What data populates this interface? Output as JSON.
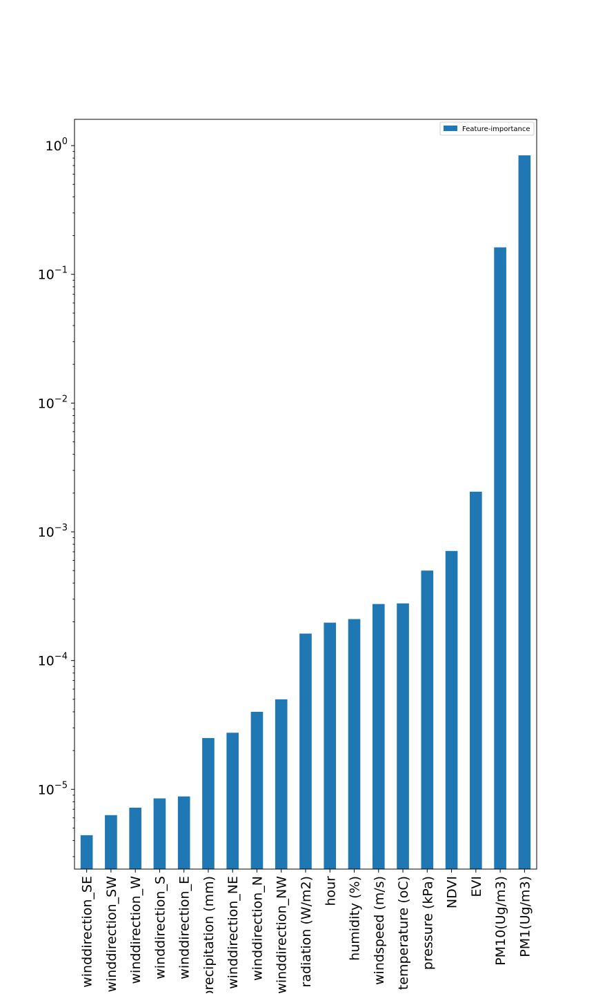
{
  "chart_data": {
    "type": "bar",
    "title": "",
    "xlabel": "",
    "ylabel": "",
    "yscale": "log",
    "ylim": [
      2.4e-06,
      1.6
    ],
    "grid": false,
    "legend_position": "top-right",
    "bar_color": "#1f77b4",
    "categories": [
      "winddirection_SE",
      "winddirection_SW",
      "winddirection_W",
      "winddirection_S",
      "winddirection_E",
      "precipitation (mm)",
      "winddirection_NE",
      "winddirection_N",
      "winddirection_NW",
      "radiation (W/m2)",
      "hour",
      "humidity (%)",
      "windspeed (m/s)",
      "temperature (oC)",
      "pressure (kPa)",
      "NDVI",
      "EVI",
      "PM10(Ug/m3)",
      "PM1(Ug/m3)"
    ],
    "series": [
      {
        "name": "Feature-importance",
        "values": [
          4.4e-06,
          6.3e-06,
          7.2e-06,
          8.5e-06,
          8.8e-06,
          2.5e-05,
          2.75e-05,
          4e-05,
          5e-05,
          0.000162,
          0.000197,
          0.00021,
          0.000275,
          0.000278,
          0.0005,
          0.00071,
          0.00205,
          0.162,
          0.84
        ]
      }
    ],
    "y_ticks": [
      {
        "base": "10",
        "exp": "−5",
        "value": 1e-05
      },
      {
        "base": "10",
        "exp": "−4",
        "value": 0.0001
      },
      {
        "base": "10",
        "exp": "−3",
        "value": 0.001
      },
      {
        "base": "10",
        "exp": "−2",
        "value": 0.01
      },
      {
        "base": "10",
        "exp": "−1",
        "value": 0.1
      },
      {
        "base": "10",
        "exp": "0",
        "value": 1
      }
    ]
  }
}
